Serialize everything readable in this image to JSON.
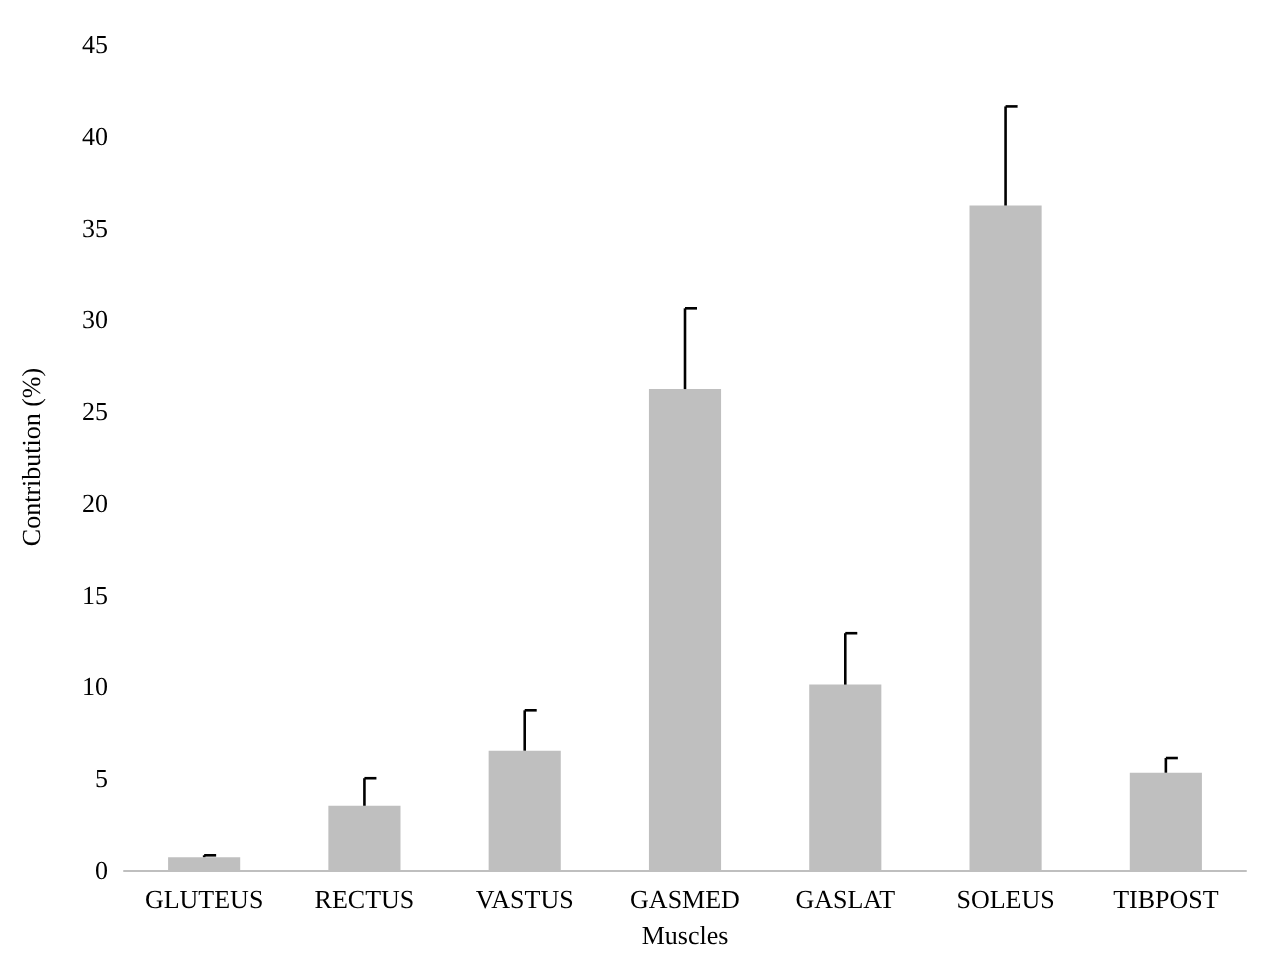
{
  "chart_data": {
    "type": "bar",
    "xlabel": "Muscles",
    "ylabel": "Contribution (%)",
    "categories": [
      "GLUTEUS",
      "RECTUS",
      "VASTUS",
      "GASMED",
      "GASLAT",
      "SOLEUS",
      "TIBPOST"
    ],
    "values": [
      0.7,
      3.5,
      6.5,
      26.2,
      10.1,
      36.2,
      5.3
    ],
    "errors": [
      [
        0.7,
        0.8
      ],
      [
        3.5,
        5.0
      ],
      [
        6.5,
        8.7
      ],
      [
        26.2,
        30.6
      ],
      [
        10.1,
        12.9
      ],
      [
        36.2,
        41.6
      ],
      [
        5.3,
        6.1
      ]
    ],
    "color": "#bfbfbf",
    "ylim": [
      0,
      45
    ],
    "yticks": [
      0,
      5,
      10,
      15,
      20,
      25,
      30,
      35,
      40,
      45
    ],
    "grid": false
  }
}
